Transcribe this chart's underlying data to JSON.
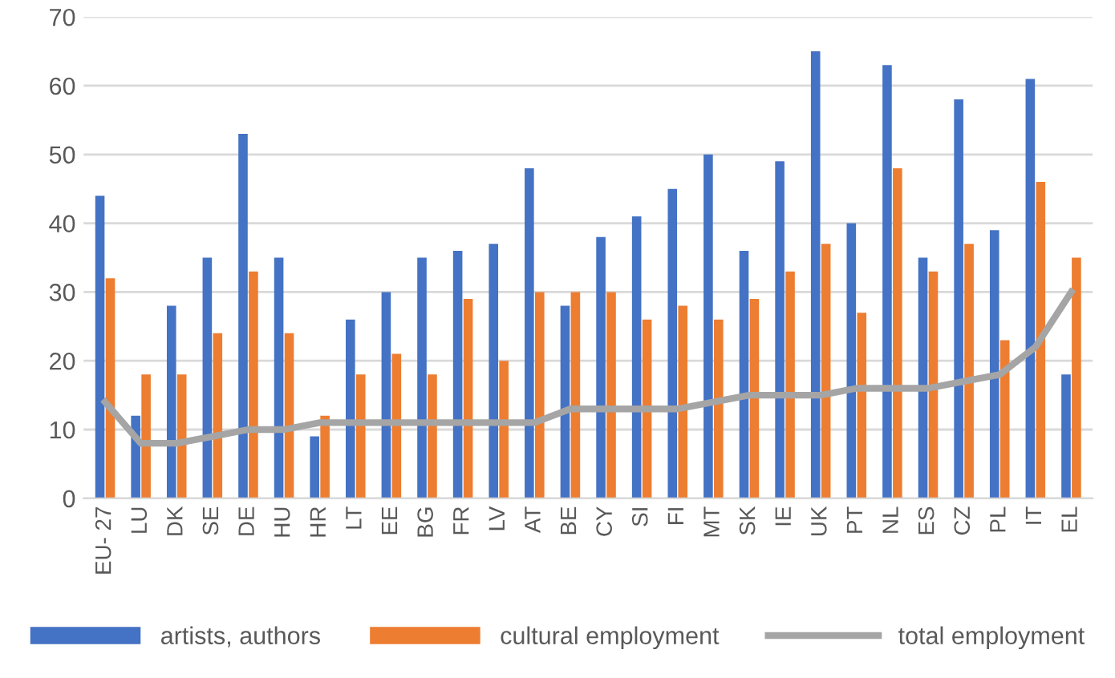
{
  "chart_data": {
    "type": "bar",
    "categories": [
      "EU- 27",
      "LU",
      "DK",
      "SE",
      "DE",
      "HU",
      "HR",
      "LT",
      "EE",
      "BG",
      "FR",
      "LV",
      "AT",
      "BE",
      "CY",
      "SI",
      "FI",
      "MT",
      "SK",
      "IE",
      "UK",
      "PT",
      "NL",
      "ES",
      "CZ",
      "PL",
      "IT",
      "EL"
    ],
    "series": [
      {
        "name": "artists, authors",
        "color": "#4472c4",
        "values": [
          44,
          12,
          28,
          35,
          53,
          35,
          9,
          26,
          30,
          35,
          36,
          37,
          48,
          28,
          38,
          41,
          45,
          50,
          36,
          49,
          65,
          40,
          63,
          35,
          58,
          39,
          61,
          18
        ]
      },
      {
        "name": "cultural employment",
        "color": "#ed7d31",
        "values": [
          32,
          18,
          18,
          24,
          33,
          24,
          12,
          18,
          21,
          18,
          29,
          20,
          30,
          30,
          30,
          26,
          28,
          26,
          29,
          33,
          37,
          27,
          48,
          33,
          37,
          23,
          46,
          35
        ]
      },
      {
        "name": "total employment",
        "type": "line",
        "color": "#a5a5a5",
        "values": [
          14,
          8,
          8,
          9,
          10,
          10,
          11,
          11,
          11,
          11,
          11,
          11,
          11,
          13,
          13,
          13,
          13,
          14,
          15,
          15,
          15,
          16,
          16,
          16,
          17,
          18,
          22,
          30
        ]
      }
    ],
    "ylim": [
      0,
      70
    ],
    "yticks": [
      0,
      10,
      20,
      30,
      40,
      50,
      60,
      70
    ],
    "grid": "y",
    "legend": "bottom",
    "marker": "none"
  }
}
